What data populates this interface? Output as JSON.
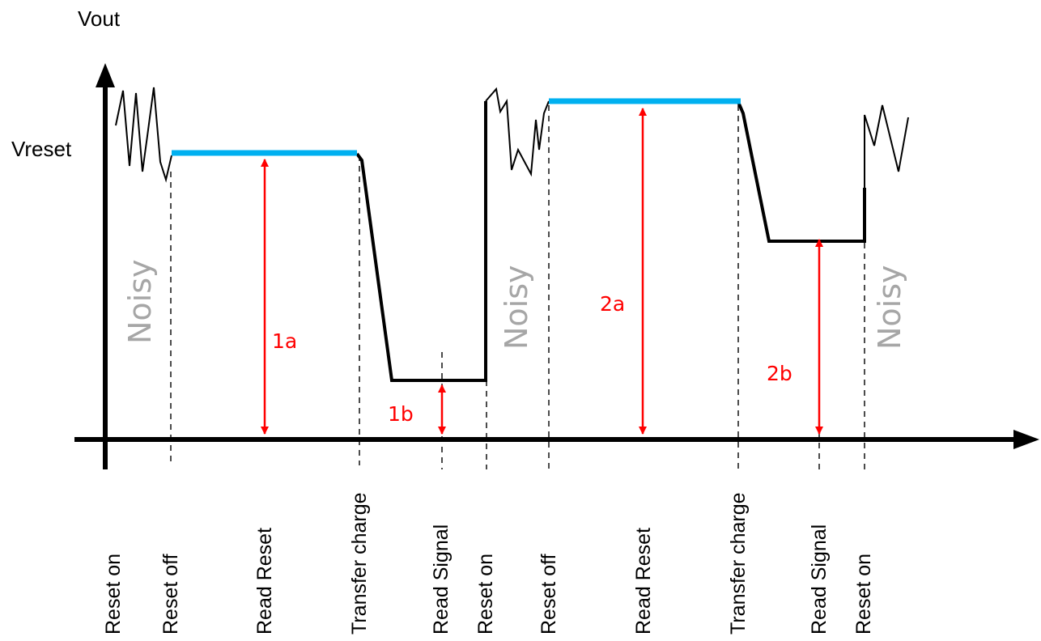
{
  "diagram": {
    "y_axis_label": "Vout",
    "level_label": "Vreset",
    "colors": {
      "signal": "#000000",
      "reset_level": "#00b0f0",
      "measurement": "#ff0000",
      "noisy": "#a6a6a6"
    },
    "noisy_labels": [
      "Noisy",
      "Noisy",
      "Noisy"
    ],
    "measurements": [
      "1a",
      "1b",
      "2a",
      "2b"
    ],
    "events": [
      "Reset on",
      "Reset off",
      "Read Reset",
      "Transfer charge",
      "Read Signal",
      "Reset on",
      "Reset off",
      "Read Reset",
      "Transfer charge",
      "Read Signal",
      "Reset on"
    ]
  }
}
